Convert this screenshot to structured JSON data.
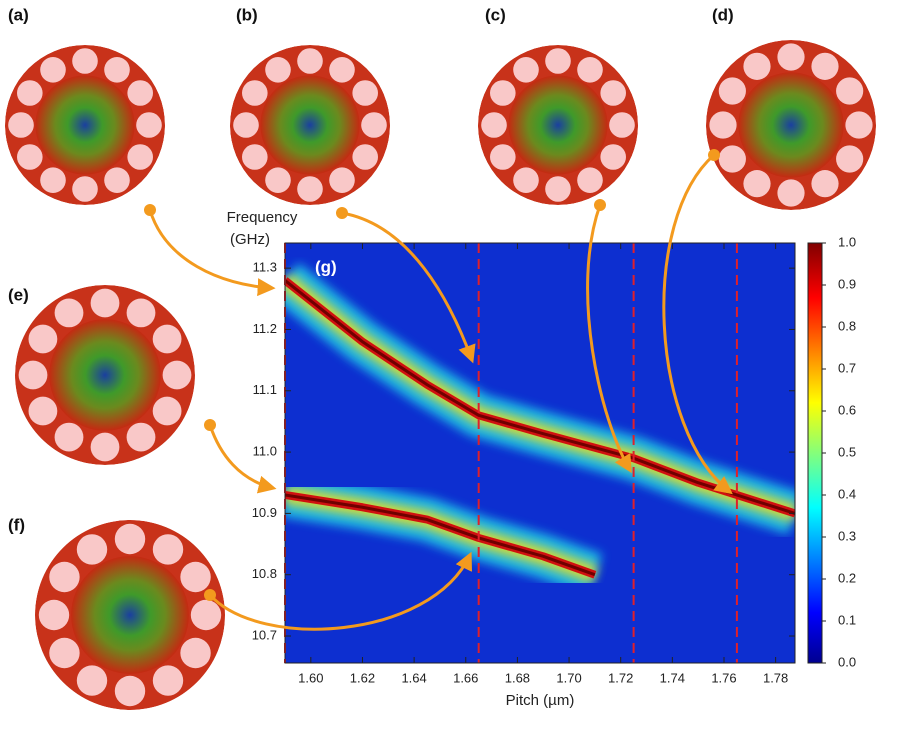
{
  "chart_data": {
    "type": "heatmap",
    "x_label": "Pitch (µm)",
    "y_label_lines": [
      "Frequency",
      "(GHz)"
    ],
    "inset_label": "(g)",
    "panel_labels": [
      "(a)",
      "(b)",
      "(c)",
      "(d)",
      "(e)",
      "(f)"
    ],
    "xlim": [
      1.59,
      1.7875
    ],
    "ylim": [
      10.656,
      11.341
    ],
    "xticks": [
      {
        "value": 1.6,
        "label": "1.60"
      },
      1.62,
      1.64,
      1.66,
      1.68,
      {
        "value": 1.7,
        "label": "1.70"
      },
      1.72,
      1.74,
      1.76,
      1.78
    ],
    "yticks": [
      10.7,
      10.8,
      10.9,
      {
        "value": 11,
        "label": "11.0"
      },
      11.1,
      11.2,
      11.3
    ],
    "colorbar_lim": [
      0,
      1
    ],
    "colorbar_ticks": [
      {
        "value": 0,
        "label": "0.0"
      },
      0.1,
      0.2,
      0.3,
      0.4,
      0.5,
      0.6,
      0.7,
      0.8,
      0.9,
      {
        "value": 1,
        "label": "1.0"
      }
    ],
    "modes": [
      {
        "x": [
          1.59,
          1.62,
          1.645,
          1.665,
          1.69,
          1.725,
          1.75,
          1.7875
        ],
        "y": [
          11.28,
          11.18,
          11.11,
          11.06,
          11.03,
          10.99,
          10.95,
          10.9
        ]
      },
      {
        "x": [
          1.59,
          1.62,
          1.645,
          1.665,
          1.69,
          1.71
        ],
        "y": [
          10.93,
          10.91,
          10.89,
          10.86,
          10.83,
          10.8
        ]
      }
    ],
    "markers": [
      1.59,
      1.665,
      1.725,
      1.765
    ]
  }
}
